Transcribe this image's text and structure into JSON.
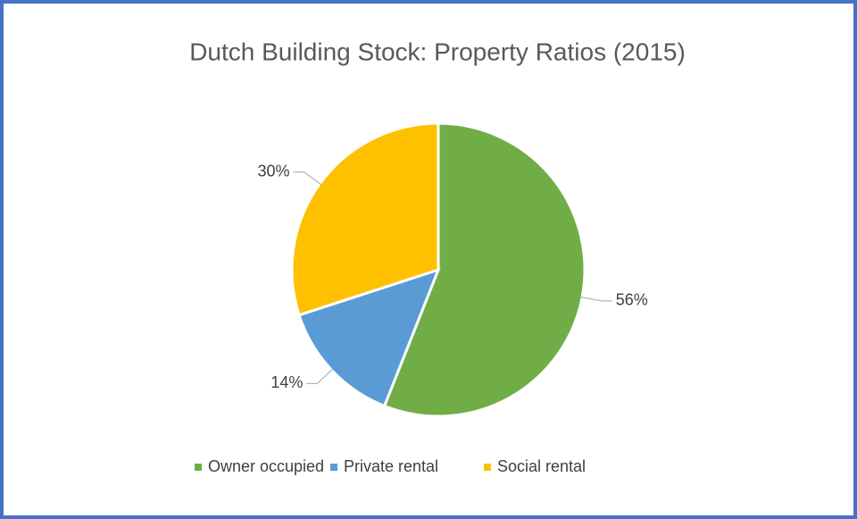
{
  "chart_data": {
    "type": "pie",
    "title": "Dutch Building Stock: Property Ratios (2015)",
    "categories": [
      "Owner occupied",
      "Private rental",
      "Social rental"
    ],
    "values": [
      56,
      14,
      30
    ],
    "value_labels": [
      "56%",
      "14%",
      "30%"
    ],
    "colors": [
      "#70ad47",
      "#5b9bd5",
      "#ffc000"
    ],
    "legend": "bottom"
  }
}
